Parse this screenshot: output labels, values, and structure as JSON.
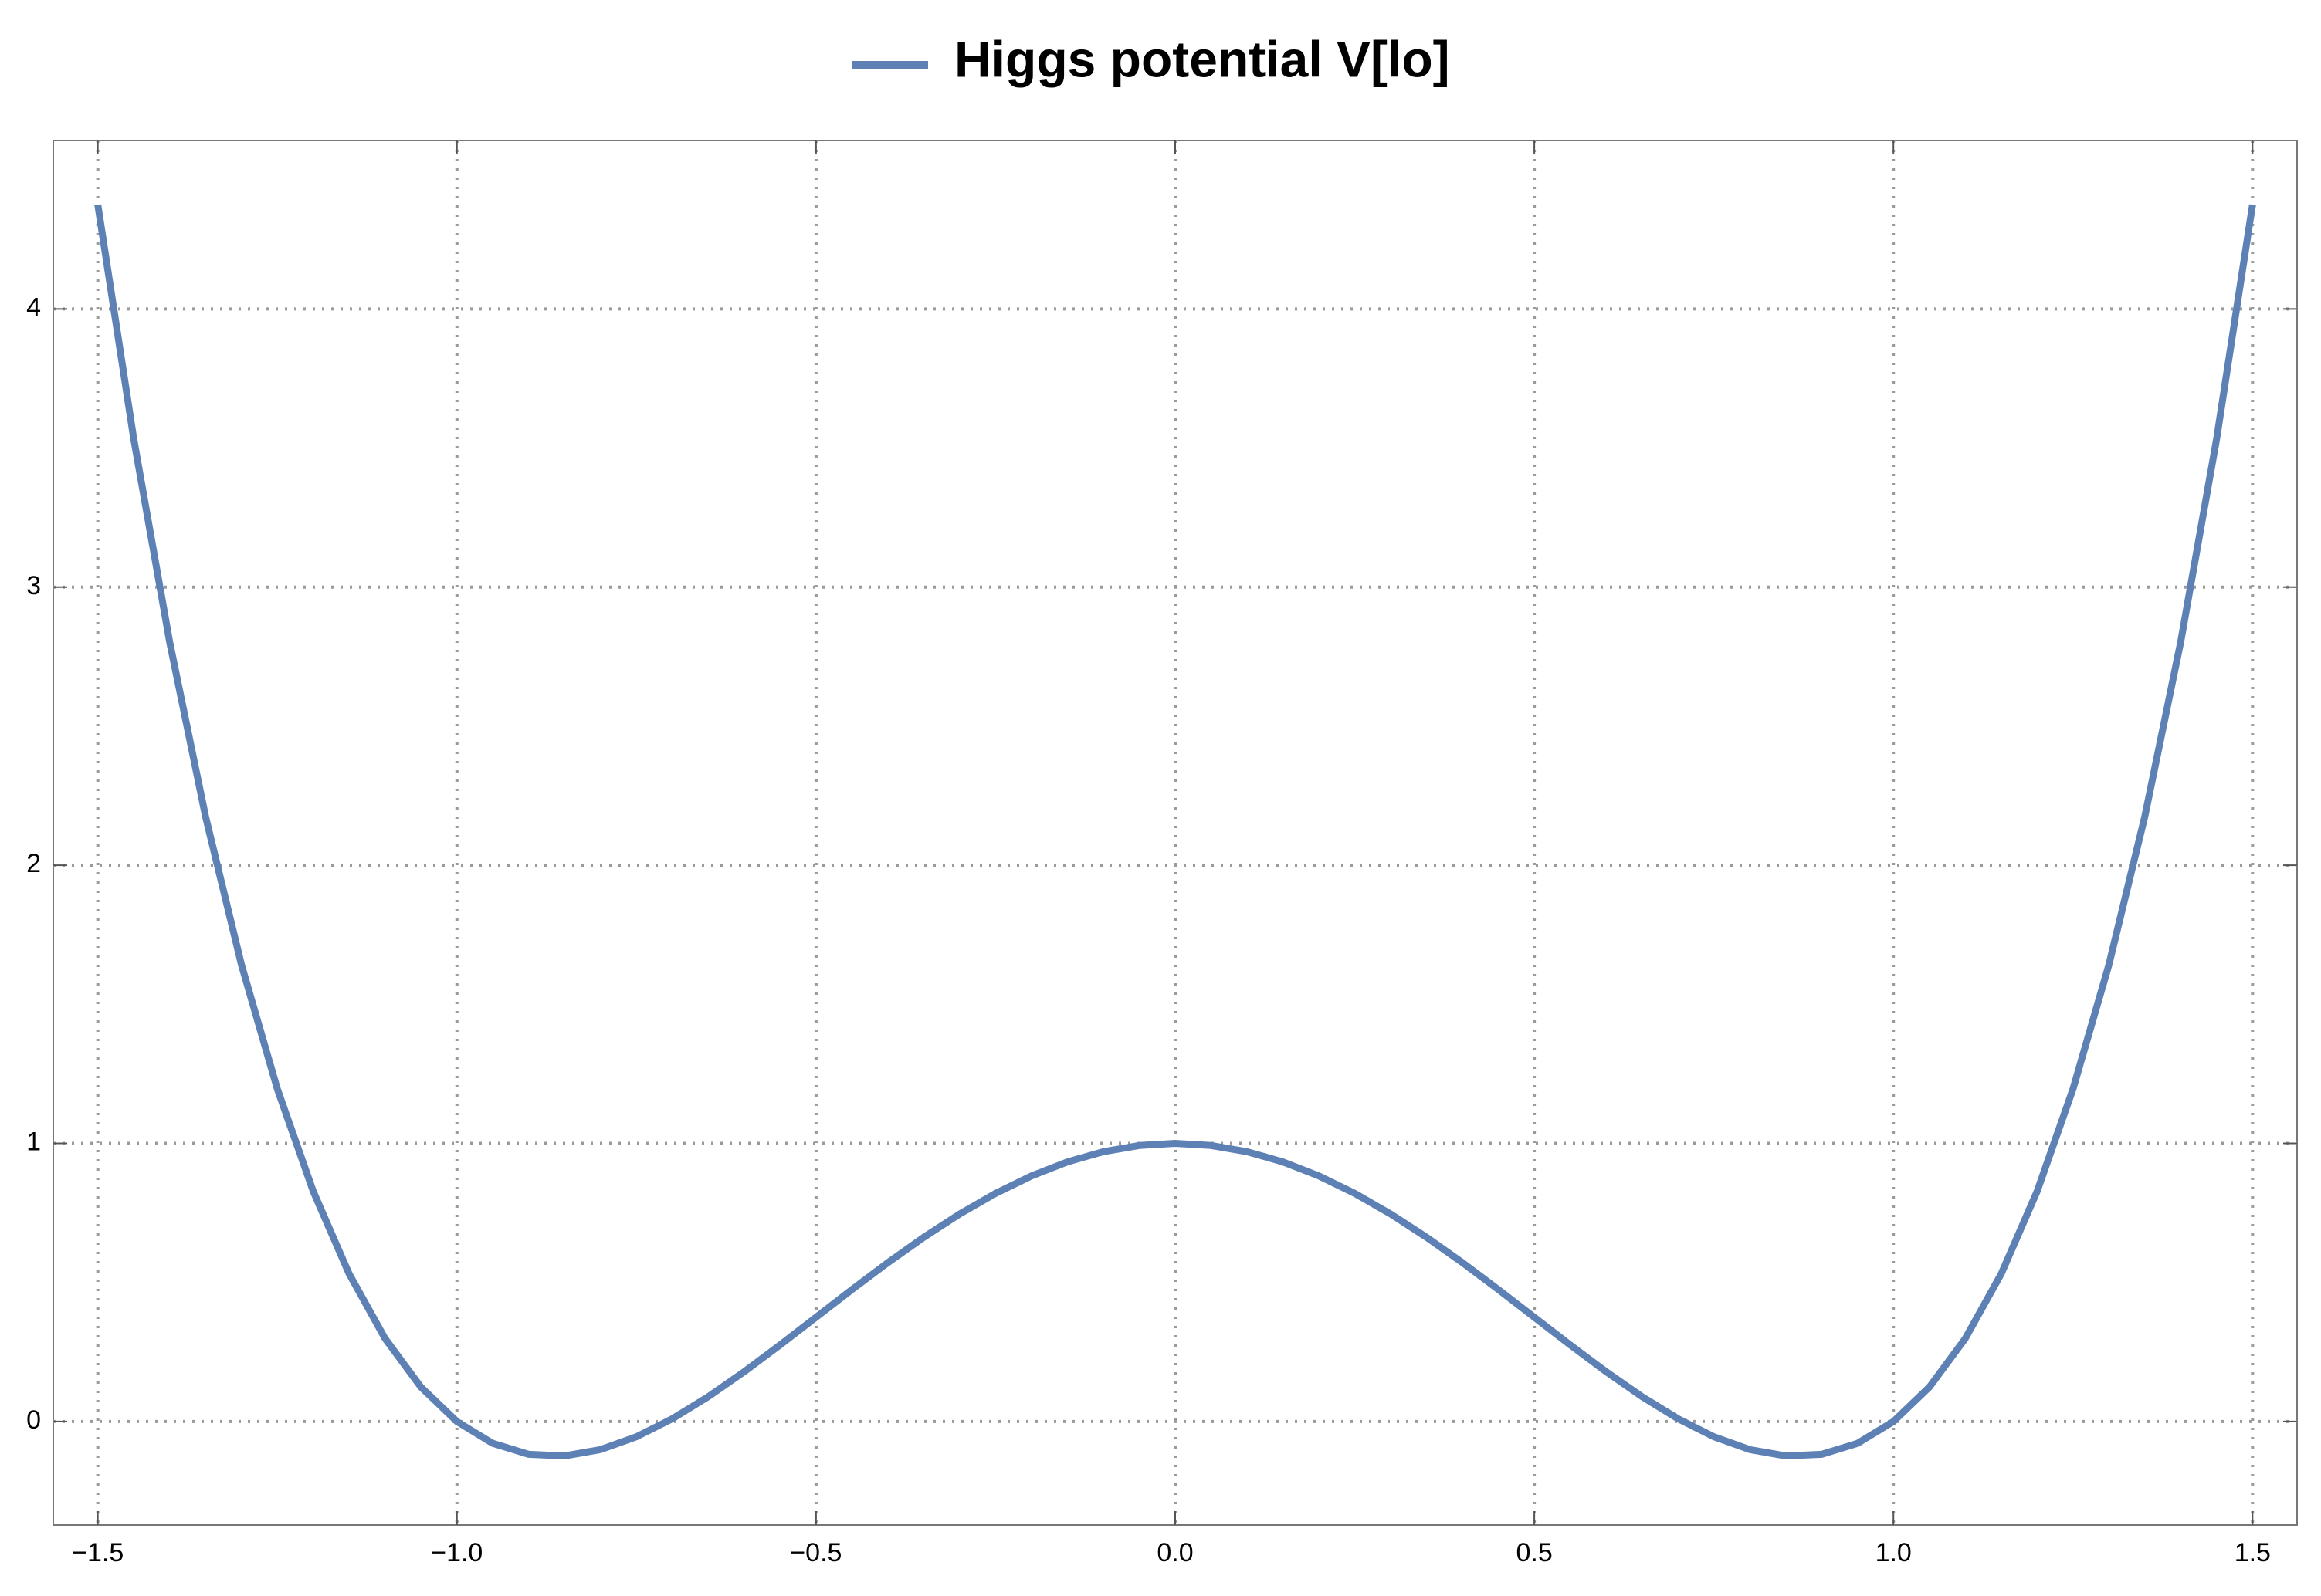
{
  "chart_data": {
    "type": "line",
    "x": [
      -1.5,
      -1.45,
      -1.4,
      -1.35,
      -1.3,
      -1.25,
      -1.2,
      -1.15,
      -1.1,
      -1.05,
      -1.0,
      -0.95,
      -0.9,
      -0.85,
      -0.8,
      -0.75,
      -0.7,
      -0.65,
      -0.6,
      -0.55,
      -0.5,
      -0.45,
      -0.4,
      -0.35,
      -0.3,
      -0.25,
      -0.2,
      -0.15,
      -0.1,
      -0.05,
      0,
      0.05,
      0.1,
      0.15,
      0.2,
      0.25,
      0.3,
      0.35,
      0.4,
      0.45,
      0.5,
      0.55,
      0.6,
      0.65,
      0.7,
      0.75,
      0.8,
      0.85,
      0.9,
      0.95,
      1.0,
      1.05,
      1.1,
      1.15,
      1.2,
      1.25,
      1.3,
      1.35,
      1.4,
      1.45,
      1.5
    ],
    "series": [
      {
        "name": "Higgs potential V[lo]",
        "color": "#5e81b5",
        "values": [
          4.375,
          3.5335,
          2.8032,
          2.1755,
          1.6422,
          1.1953,
          0.8272,
          0.5305,
          0.2982,
          0.1235,
          0,
          -0.0785,
          -0.1178,
          -0.1235,
          -0.1008,
          -0.0547,
          0.0102,
          0.0895,
          0.1792,
          0.2755,
          0.375,
          0.4745,
          0.5712,
          0.6625,
          0.7462,
          0.8203,
          0.8832,
          0.9335,
          0.9702,
          0.9925,
          1,
          0.9925,
          0.9702,
          0.9335,
          0.8832,
          0.8203,
          0.7462,
          0.6625,
          0.5712,
          0.4745,
          0.375,
          0.2755,
          0.1792,
          0.0895,
          0.0102,
          -0.0547,
          -0.1008,
          -0.1235,
          -0.1178,
          -0.0785,
          0,
          0.1235,
          0.2982,
          0.5305,
          0.8272,
          1.1953,
          1.6422,
          2.1755,
          2.8032,
          3.5335,
          4.375
        ]
      }
    ],
    "xlim": [
      -1.562,
      1.562
    ],
    "ylim": [
      -0.372,
      4.606
    ],
    "xticks": [
      {
        "value": -1.5,
        "label": "−1.5"
      },
      {
        "value": -1.0,
        "label": "−1.0"
      },
      {
        "value": -0.5,
        "label": "−0.5"
      },
      {
        "value": 0,
        "label": "0.0"
      },
      0.5,
      {
        "value": 1.0,
        "label": "1.0"
      },
      1.5
    ],
    "yticks": [
      0,
      1,
      2,
      3,
      4
    ],
    "grid": true,
    "legend": "top"
  }
}
